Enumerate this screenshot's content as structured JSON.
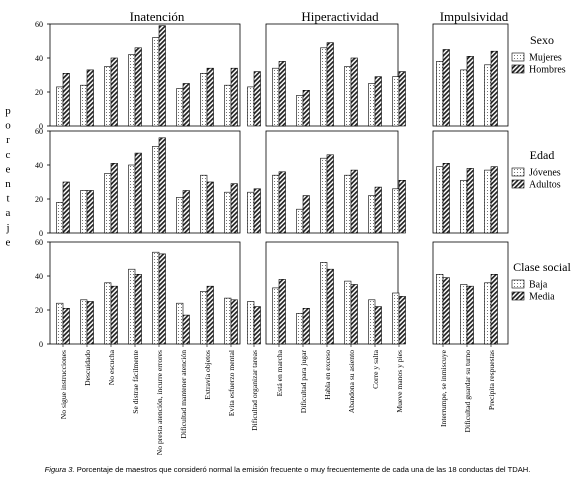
{
  "chart_data": {
    "type": "bar",
    "ylabel": "Porcentaje",
    "ylim": [
      0,
      60
    ],
    "yticks": [
      0,
      20,
      40,
      60
    ],
    "groups": [
      {
        "title": "Inatención",
        "n": 9
      },
      {
        "title": "Hiperactividad",
        "n": 6
      },
      {
        "title": "Impulsividad",
        "n": 3
      }
    ],
    "categories": [
      "No sigue instrucciones",
      "Descuidado",
      "No escucha",
      "Se distrae fácilmente",
      "No presta atención, incurre errores",
      "Dificultad mantener atención",
      "Extravía objetos",
      "Evita esfuerzo mental",
      "Dificultad organizar tareas",
      "Está en marcha",
      "Dificultad para jugar",
      "Habla en exceso",
      "Abandona su asiento",
      "Corre y salta",
      "Mueve manos y pies",
      "Interrumpe, se inmiscuye",
      "Dificultad guardar su turno",
      "Precipita respuestas"
    ],
    "panels": [
      {
        "legend_title": "Sexo",
        "series": [
          {
            "name": "Mujeres",
            "pattern": "dots",
            "values": [
              23,
              24,
              35,
              42,
              52,
              22,
              31,
              24,
              23,
              34,
              18,
              46,
              35,
              25,
              29,
              38,
              33,
              36
            ]
          },
          {
            "name": "Hombres",
            "pattern": "hatch",
            "values": [
              31,
              33,
              40,
              46,
              59,
              25,
              34,
              34,
              32,
              38,
              21,
              49,
              40,
              29,
              32,
              45,
              41,
              44
            ]
          }
        ]
      },
      {
        "legend_title": "Edad",
        "series": [
          {
            "name": "Jóvenes",
            "pattern": "dots",
            "values": [
              18,
              25,
              35,
              40,
              51,
              21,
              34,
              24,
              24,
              34,
              14,
              44,
              34,
              22,
              26,
              39,
              31,
              37
            ]
          },
          {
            "name": "Adultos",
            "pattern": "hatch",
            "values": [
              30,
              25,
              41,
              47,
              56,
              25,
              30,
              29,
              26,
              36,
              22,
              46,
              37,
              27,
              31,
              41,
              38,
              39
            ]
          }
        ]
      },
      {
        "legend_title": "Clase social",
        "series": [
          {
            "name": "Baja",
            "pattern": "dots",
            "values": [
              24,
              26,
              36,
              44,
              54,
              24,
              31,
              27,
              25,
              33,
              18,
              48,
              37,
              26,
              30,
              41,
              35,
              36
            ]
          },
          {
            "name": "Media",
            "pattern": "hatch",
            "values": [
              21,
              25,
              34,
              41,
              53,
              17,
              34,
              26,
              22,
              38,
              21,
              44,
              35,
              22,
              28,
              39,
              34,
              41
            ]
          }
        ]
      }
    ]
  },
  "caption": {
    "label": "Figura 3.",
    "text": "Porcentaje de maestros que consideró normal la emisión frecuente o muy frecuentemente de cada una de las 18 conductas del TDAH."
  }
}
